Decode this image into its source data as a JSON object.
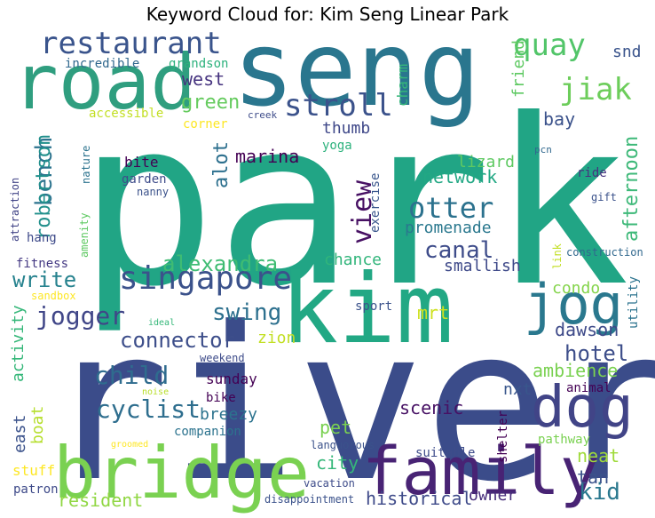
{
  "chart_data": {
    "type": "wordcloud",
    "title": "Keyword Cloud for: Kim Seng Linear Park",
    "words": [
      {
        "text": "park",
        "weight": 1.0,
        "color": "#21a585"
      },
      {
        "text": "river",
        "weight": 0.98,
        "color": "#3b4c8a"
      },
      {
        "text": "seng",
        "weight": 0.58,
        "color": "#2a768e"
      },
      {
        "text": "kim",
        "weight": 0.55,
        "color": "#22a884"
      },
      {
        "text": "road",
        "weight": 0.42,
        "color": "#2f9e7f"
      },
      {
        "text": "bridge",
        "weight": 0.4,
        "color": "#7ad151"
      },
      {
        "text": "family",
        "weight": 0.38,
        "color": "#482374"
      },
      {
        "text": "dog",
        "weight": 0.33,
        "color": "#414487"
      },
      {
        "text": "jog",
        "weight": 0.32,
        "color": "#2a788e"
      },
      {
        "text": "restaurant",
        "weight": 0.16,
        "color": "#3a548c"
      },
      {
        "text": "quay",
        "weight": 0.16,
        "color": "#52c569"
      },
      {
        "text": "jiak",
        "weight": 0.16,
        "color": "#6ccd5a"
      },
      {
        "text": "stroll",
        "weight": 0.16,
        "color": "#3b528b"
      },
      {
        "text": "singapore",
        "weight": 0.17,
        "color": "#3b528b"
      },
      {
        "text": "otter",
        "weight": 0.15,
        "color": "#2c728e"
      },
      {
        "text": "view",
        "weight": 0.14,
        "color": "#471063"
      },
      {
        "text": "jogger",
        "weight": 0.13,
        "color": "#404688"
      },
      {
        "text": "connector",
        "weight": 0.11,
        "color": "#3d4e8a"
      },
      {
        "text": "bench",
        "weight": 0.12,
        "color": "#2c738e"
      },
      {
        "text": "alexandra",
        "weight": 0.11,
        "color": "#3fbc73"
      },
      {
        "text": "canal",
        "weight": 0.12,
        "color": "#3e4c8a"
      },
      {
        "text": "swing",
        "weight": 0.12,
        "color": "#2d708e"
      },
      {
        "text": "child",
        "weight": 0.12,
        "color": "#2f6c8e"
      },
      {
        "text": "cyclist",
        "weight": 0.13,
        "color": "#2e6e8e"
      },
      {
        "text": "kid",
        "weight": 0.12,
        "color": "#2a788e"
      },
      {
        "text": "hotel",
        "weight": 0.11,
        "color": "#3d4e8a"
      },
      {
        "text": "write",
        "weight": 0.11,
        "color": "#26828e"
      },
      {
        "text": "robertson",
        "weight": 0.11,
        "color": "#22908c"
      },
      {
        "text": "afternoon",
        "weight": 0.11,
        "color": "#3eb979"
      },
      {
        "text": "green",
        "weight": 0.09,
        "color": "#65cb5e"
      },
      {
        "text": "alot",
        "weight": 0.09,
        "color": "#2d708e"
      },
      {
        "text": "west",
        "weight": 0.08,
        "color": "#46337f"
      },
      {
        "text": "thumb",
        "weight": 0.08,
        "color": "#3f4889"
      },
      {
        "text": "marina",
        "weight": 0.08,
        "color": "#440154"
      },
      {
        "text": "network",
        "weight": 0.08,
        "color": "#22a884"
      },
      {
        "text": "lizard",
        "weight": 0.08,
        "color": "#5ec962"
      },
      {
        "text": "promenade",
        "weight": 0.08,
        "color": "#2a788e"
      },
      {
        "text": "bay",
        "weight": 0.08,
        "color": "#3b528b"
      },
      {
        "text": "scenic",
        "weight": 0.08,
        "color": "#471164"
      },
      {
        "text": "dawson",
        "weight": 0.08,
        "color": "#3e4a89"
      },
      {
        "text": "ambience",
        "weight": 0.08,
        "color": "#7ad151"
      },
      {
        "text": "nxt",
        "weight": 0.08,
        "color": "#39568c"
      },
      {
        "text": "breezy",
        "weight": 0.08,
        "color": "#2c738e"
      },
      {
        "text": "sunday",
        "weight": 0.07,
        "color": "#440154"
      },
      {
        "text": "neat",
        "weight": 0.08,
        "color": "#9fda3a"
      },
      {
        "text": "tan",
        "weight": 0.08,
        "color": "#3b528b"
      },
      {
        "text": "owner",
        "weight": 0.08,
        "color": "#472d7b"
      },
      {
        "text": "historical",
        "weight": 0.08,
        "color": "#3e4a89"
      },
      {
        "text": "resident",
        "weight": 0.08,
        "color": "#90d743"
      },
      {
        "text": "city",
        "weight": 0.08,
        "color": "#35b779"
      },
      {
        "text": "pet",
        "weight": 0.08,
        "color": "#7ad151"
      },
      {
        "text": "condo",
        "weight": 0.07,
        "color": "#84d44b"
      },
      {
        "text": "mrt",
        "weight": 0.07,
        "color": "#cde11d"
      },
      {
        "text": "smallish",
        "weight": 0.07,
        "color": "#3e4989"
      },
      {
        "text": "chance",
        "weight": 0.07,
        "color": "#31b57b"
      },
      {
        "text": "zion",
        "weight": 0.07,
        "color": "#c2df23"
      },
      {
        "text": "bite",
        "weight": 0.07,
        "color": "#440154"
      },
      {
        "text": "charm",
        "weight": 0.06,
        "color": "#35b779"
      },
      {
        "text": "friend",
        "weight": 0.06,
        "color": "#5ec962"
      },
      {
        "text": "snd",
        "weight": 0.06,
        "color": "#3a548c"
      },
      {
        "text": "east",
        "weight": 0.07,
        "color": "#3b528b"
      },
      {
        "text": "boat",
        "weight": 0.07,
        "color": "#b5de2b"
      },
      {
        "text": "activity",
        "weight": 0.07,
        "color": "#35b779"
      },
      {
        "text": "fitness",
        "weight": 0.05,
        "color": "#443983"
      },
      {
        "text": "hang",
        "weight": 0.05,
        "color": "#3e4a89"
      },
      {
        "text": "exercise",
        "weight": 0.05,
        "color": "#39568c"
      },
      {
        "text": "incredible",
        "weight": 0.05,
        "color": "#31688e"
      },
      {
        "text": "grandson",
        "weight": 0.05,
        "color": "#2db27d"
      },
      {
        "text": "accessible",
        "weight": 0.05,
        "color": "#c2df23"
      },
      {
        "text": "corner",
        "weight": 0.05,
        "color": "#fde725"
      },
      {
        "text": "yoga",
        "weight": 0.05,
        "color": "#2db27d"
      },
      {
        "text": "nature",
        "weight": 0.05,
        "color": "#2c738e"
      },
      {
        "text": "garden",
        "weight": 0.05,
        "color": "#3e4c8a"
      },
      {
        "text": "nanny",
        "weight": 0.05,
        "color": "#3b528b"
      },
      {
        "text": "attraction",
        "weight": 0.05,
        "color": "#414487"
      },
      {
        "text": "amenity",
        "weight": 0.04,
        "color": "#5ec962"
      },
      {
        "text": "ride",
        "weight": 0.05,
        "color": "#46337f"
      },
      {
        "text": "gift",
        "weight": 0.04,
        "color": "#3b528b"
      },
      {
        "text": "link",
        "weight": 0.05,
        "color": "#c2df23"
      },
      {
        "text": "construction",
        "weight": 0.04,
        "color": "#31688e"
      },
      {
        "text": "utility",
        "weight": 0.05,
        "color": "#2c738e"
      },
      {
        "text": "sport",
        "weight": 0.05,
        "color": "#3b528b"
      },
      {
        "text": "sandbox",
        "weight": 0.04,
        "color": "#fde725"
      },
      {
        "text": "ideal",
        "weight": 0.04,
        "color": "#35b779"
      },
      {
        "text": "weekend",
        "weight": 0.04,
        "color": "#3e4c8a"
      },
      {
        "text": "noise",
        "weight": 0.04,
        "color": "#b8de29"
      },
      {
        "text": "bike",
        "weight": 0.05,
        "color": "#440154"
      },
      {
        "text": "companion",
        "weight": 0.05,
        "color": "#2c738e"
      },
      {
        "text": "groomed",
        "weight": 0.04,
        "color": "#fde725"
      },
      {
        "text": "languorous",
        "weight": 0.04,
        "color": "#3b528b"
      },
      {
        "text": "vacation",
        "weight": 0.04,
        "color": "#3e4c8a"
      },
      {
        "text": "disappointment",
        "weight": 0.04,
        "color": "#3b528b"
      },
      {
        "text": "stuff",
        "weight": 0.05,
        "color": "#fde725"
      },
      {
        "text": "patron",
        "weight": 0.05,
        "color": "#3e4a89"
      },
      {
        "text": "shelter",
        "weight": 0.05,
        "color": "#440154"
      },
      {
        "text": "suitable",
        "weight": 0.05,
        "color": "#3e4c8a"
      },
      {
        "text": "pathway",
        "weight": 0.05,
        "color": "#7ad151"
      },
      {
        "text": "animal",
        "weight": 0.05,
        "color": "#440154"
      },
      {
        "text": "creek",
        "weight": 0.04,
        "color": "#3e4c8a"
      },
      {
        "text": "pcn",
        "weight": 0.04,
        "color": "#31688e"
      }
    ]
  }
}
